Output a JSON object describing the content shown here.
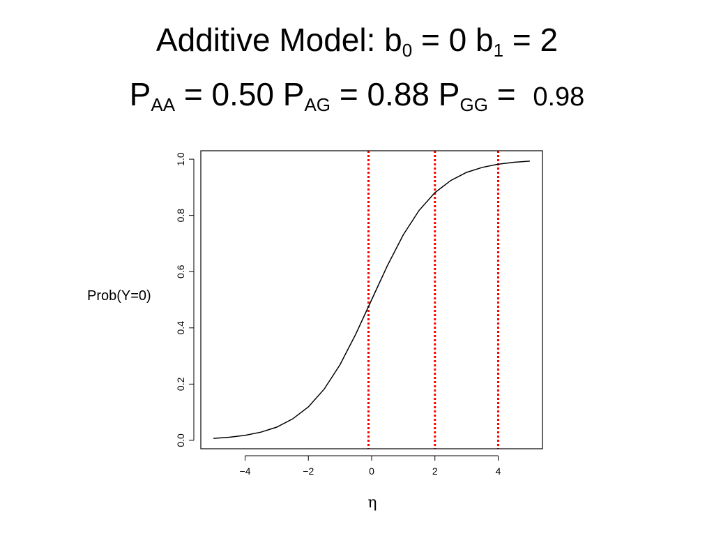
{
  "slide": {
    "title_line1": {
      "text_a": "Additive Model: b",
      "sub_a": "0",
      "text_b": " = 0 b",
      "sub_b": "1",
      "text_c": " = 2"
    },
    "title_line2": {
      "p_aa": "P",
      "sub_aa": "AA",
      "val_aa": " = 0.50 ",
      "p_ag": "P",
      "sub_ag": "AG",
      "val_ag": " = 0.88 ",
      "p_gg": "P",
      "sub_gg": "GG",
      "eq_gg": " = ",
      "val_gg": "0.98"
    }
  },
  "chart_data": {
    "type": "line",
    "xlabel": "η",
    "ylabel": "Prob(Y=0)",
    "xlim": [
      -5.4,
      5.4
    ],
    "ylim": [
      -0.03,
      1.03
    ],
    "x_ticks": [
      -4,
      -2,
      0,
      2,
      4
    ],
    "x_tick_labels": [
      "−4",
      "−2",
      "0",
      "2",
      "4"
    ],
    "y_ticks": [
      0.0,
      0.2,
      0.4,
      0.6,
      0.8,
      1.0
    ],
    "y_tick_labels": [
      "0.0",
      "0.2",
      "0.4",
      "0.6",
      "0.8",
      "1.0"
    ],
    "grid": false,
    "series": [
      {
        "type": "line",
        "color": "#000000",
        "x": [
          -5.0,
          -4.5,
          -4.0,
          -3.5,
          -3.0,
          -2.5,
          -2.0,
          -1.5,
          -1.0,
          -0.5,
          0.0,
          0.5,
          1.0,
          1.5,
          2.0,
          2.5,
          3.0,
          3.5,
          4.0,
          4.5,
          5.0
        ],
        "y": [
          0.007,
          0.011,
          0.018,
          0.029,
          0.047,
          0.076,
          0.119,
          0.182,
          0.269,
          0.378,
          0.5,
          0.622,
          0.731,
          0.818,
          0.881,
          0.924,
          0.953,
          0.971,
          0.982,
          0.989,
          0.993
        ]
      }
    ],
    "vlines": [
      {
        "x": -0.1,
        "color": "#ff0000",
        "style": "dotted"
      },
      {
        "x": 2.0,
        "color": "#ff0000",
        "style": "dotted"
      },
      {
        "x": 4.0,
        "color": "#ff0000",
        "style": "dotted"
      }
    ]
  }
}
